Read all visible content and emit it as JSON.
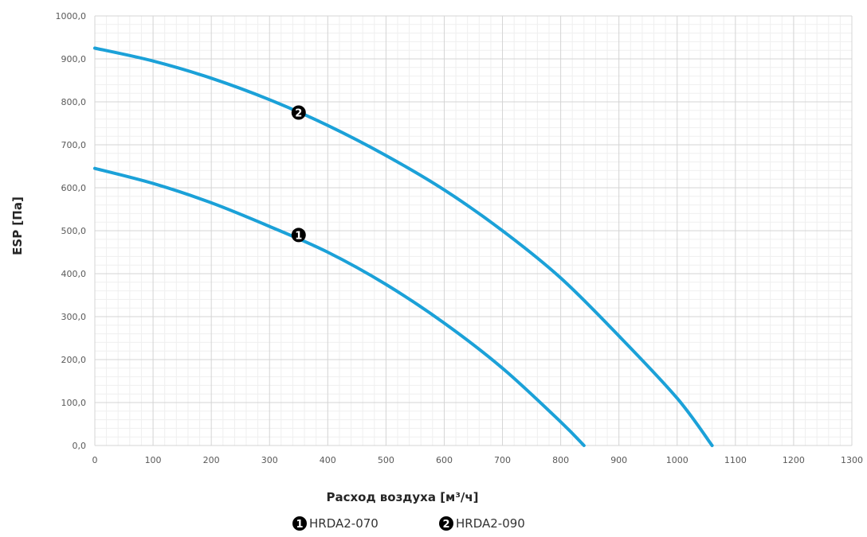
{
  "chart_data": {
    "type": "line",
    "title": "",
    "xlabel": "Расход воздуха [м³/ч]",
    "ylabel": "ESP [Па]",
    "xlim": [
      0,
      1300
    ],
    "ylim": [
      0,
      1000
    ],
    "x_ticks": [
      "0",
      "100",
      "200",
      "300",
      "400",
      "500",
      "600",
      "700",
      "800",
      "900",
      "1000",
      "1100",
      "1200",
      "1300"
    ],
    "y_ticks": [
      "0,0",
      "100,0",
      "200,0",
      "300,0",
      "400,0",
      "500,0",
      "600,0",
      "700,0",
      "800,0",
      "900,0",
      "1000,0"
    ],
    "grid": true,
    "legend_position": "bottom",
    "series_color": "#1BA1D8",
    "series": [
      {
        "name": "HRDA2-070",
        "marker_label": "1",
        "marker_point": [
          350,
          490
        ],
        "x": [
          0,
          100,
          200,
          300,
          400,
          500,
          600,
          700,
          800,
          840
        ],
        "y": [
          645,
          610,
          565,
          510,
          450,
          375,
          285,
          180,
          55,
          0
        ]
      },
      {
        "name": "HRDA2-090",
        "marker_label": "2",
        "marker_point": [
          350,
          775
        ],
        "x": [
          0,
          100,
          200,
          300,
          400,
          500,
          600,
          700,
          800,
          900,
          1000,
          1060
        ],
        "y": [
          925,
          895,
          855,
          805,
          745,
          675,
          595,
          500,
          390,
          255,
          110,
          0
        ]
      }
    ]
  }
}
